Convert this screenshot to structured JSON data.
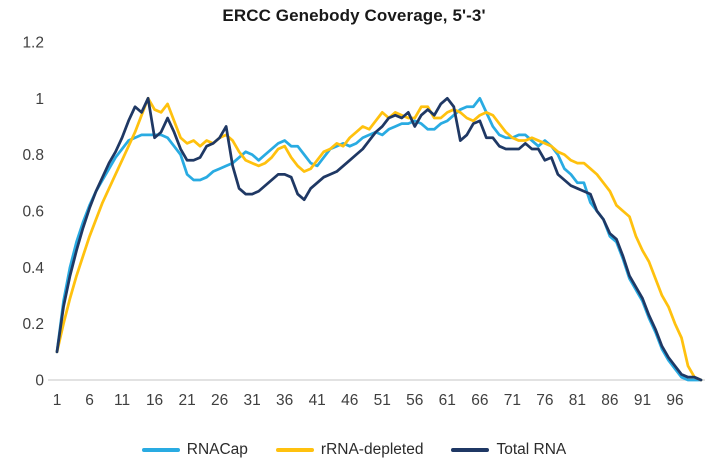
{
  "title": "ERCC Genebody Coverage, 5'-3'",
  "chart_data": {
    "type": "line",
    "title": "ERCC Genebody Coverage, 5'-3'",
    "xlabel": "",
    "ylabel": "",
    "grid": false,
    "legend_position": "bottom",
    "x_description": "genebody percentile position, 1 to 100",
    "x_min": 1,
    "x_max": 100,
    "ylim": [
      0,
      1.2
    ],
    "x_tick_labels": [
      "1",
      "6",
      "11",
      "16",
      "21",
      "26",
      "31",
      "36",
      "41",
      "46",
      "51",
      "56",
      "61",
      "66",
      "71",
      "76",
      "81",
      "86",
      "91",
      "96"
    ],
    "y_tick_labels": [
      "0",
      "0.2",
      "0.4",
      "0.6",
      "0.8",
      "1",
      "1.2"
    ],
    "series": [
      {
        "name": "RNACap",
        "color": "#29ABE2",
        "values": [
          0.1,
          0.28,
          0.4,
          0.49,
          0.56,
          0.62,
          0.67,
          0.71,
          0.75,
          0.79,
          0.82,
          0.85,
          0.86,
          0.87,
          0.87,
          0.87,
          0.87,
          0.86,
          0.83,
          0.8,
          0.73,
          0.71,
          0.71,
          0.72,
          0.74,
          0.75,
          0.76,
          0.77,
          0.79,
          0.81,
          0.8,
          0.78,
          0.8,
          0.82,
          0.84,
          0.85,
          0.83,
          0.83,
          0.8,
          0.77,
          0.76,
          0.79,
          0.82,
          0.83,
          0.84,
          0.83,
          0.84,
          0.86,
          0.87,
          0.88,
          0.87,
          0.89,
          0.9,
          0.91,
          0.91,
          0.92,
          0.91,
          0.89,
          0.89,
          0.91,
          0.92,
          0.94,
          0.96,
          0.97,
          0.97,
          1.0,
          0.95,
          0.9,
          0.87,
          0.86,
          0.86,
          0.87,
          0.87,
          0.85,
          0.83,
          0.85,
          0.83,
          0.8,
          0.75,
          0.73,
          0.7,
          0.7,
          0.63,
          0.6,
          0.57,
          0.51,
          0.49,
          0.43,
          0.36,
          0.32,
          0.28,
          0.22,
          0.17,
          0.11,
          0.07,
          0.04,
          0.01,
          0.0,
          0.0,
          0.0
        ]
      },
      {
        "name": "rRNA-depleted",
        "color": "#FFC10E",
        "values": [
          0.1,
          0.2,
          0.29,
          0.37,
          0.44,
          0.51,
          0.57,
          0.63,
          0.68,
          0.73,
          0.78,
          0.83,
          0.88,
          0.94,
          1.0,
          0.96,
          0.95,
          0.98,
          0.92,
          0.86,
          0.84,
          0.85,
          0.83,
          0.85,
          0.84,
          0.86,
          0.87,
          0.85,
          0.81,
          0.78,
          0.77,
          0.76,
          0.77,
          0.79,
          0.82,
          0.83,
          0.79,
          0.76,
          0.74,
          0.75,
          0.78,
          0.81,
          0.82,
          0.84,
          0.83,
          0.86,
          0.88,
          0.9,
          0.89,
          0.92,
          0.95,
          0.93,
          0.95,
          0.94,
          0.93,
          0.93,
          0.97,
          0.97,
          0.93,
          0.93,
          0.95,
          0.96,
          0.95,
          0.93,
          0.92,
          0.94,
          0.95,
          0.94,
          0.91,
          0.88,
          0.86,
          0.85,
          0.85,
          0.86,
          0.85,
          0.84,
          0.83,
          0.81,
          0.8,
          0.78,
          0.77,
          0.77,
          0.75,
          0.73,
          0.7,
          0.67,
          0.62,
          0.6,
          0.58,
          0.51,
          0.46,
          0.42,
          0.36,
          0.3,
          0.26,
          0.2,
          0.15,
          0.05,
          0.01,
          0.0
        ]
      },
      {
        "name": "Total RNA",
        "color": "#1F3864",
        "values": [
          0.1,
          0.26,
          0.37,
          0.46,
          0.54,
          0.61,
          0.67,
          0.72,
          0.77,
          0.81,
          0.86,
          0.92,
          0.97,
          0.95,
          1.0,
          0.86,
          0.88,
          0.93,
          0.88,
          0.82,
          0.78,
          0.78,
          0.79,
          0.83,
          0.84,
          0.86,
          0.9,
          0.76,
          0.68,
          0.66,
          0.66,
          0.67,
          0.69,
          0.71,
          0.73,
          0.73,
          0.72,
          0.66,
          0.64,
          0.68,
          0.7,
          0.72,
          0.73,
          0.74,
          0.76,
          0.78,
          0.8,
          0.82,
          0.85,
          0.88,
          0.9,
          0.93,
          0.94,
          0.93,
          0.95,
          0.9,
          0.94,
          0.96,
          0.94,
          0.98,
          1.0,
          0.97,
          0.85,
          0.87,
          0.91,
          0.92,
          0.86,
          0.86,
          0.83,
          0.82,
          0.82,
          0.82,
          0.84,
          0.82,
          0.82,
          0.78,
          0.79,
          0.73,
          0.71,
          0.69,
          0.68,
          0.67,
          0.66,
          0.6,
          0.57,
          0.52,
          0.5,
          0.44,
          0.37,
          0.33,
          0.29,
          0.23,
          0.18,
          0.12,
          0.08,
          0.05,
          0.02,
          0.01,
          0.01,
          0.0
        ]
      }
    ]
  },
  "colors": {
    "background": "#FFFFFF",
    "axis_line": "#D9D9D9",
    "tick_text": "#3F3F3F",
    "title_text": "#191919"
  }
}
